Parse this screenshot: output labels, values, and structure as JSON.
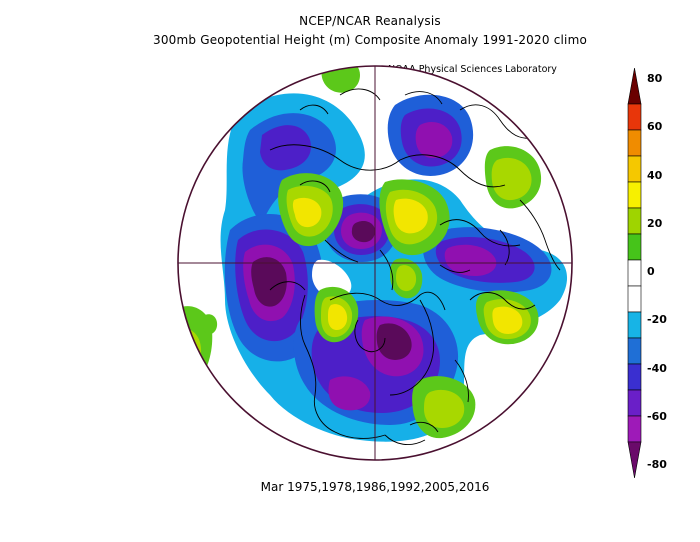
{
  "header": {
    "title_line1": "NCEP/NCAR Reanalysis",
    "title_line2": "300mb Geopotential Height (m) Composite Anomaly 1991-2020 climo",
    "credit": "NOAA Physical Sciences Laboratory"
  },
  "footer": {
    "caption": "Mar 1975,1978,1986,1992,2005,2016"
  },
  "colorbar": {
    "labels": [
      "80",
      "60",
      "40",
      "20",
      "0",
      "-20",
      "-40",
      "-60",
      "-80"
    ],
    "colors": [
      "#6a0000",
      "#e8360a",
      "#f08c00",
      "#f5c800",
      "#f7f000",
      "#9fd400",
      "#46c41a",
      "#ffffff",
      "#ffffff",
      "#17b4e6",
      "#1f6fd6",
      "#3a2fd0",
      "#6a1fc8",
      "#9e1ab8",
      "#6a0a6a"
    ]
  },
  "map": {
    "colors": {
      "strong_neg": "#5a0a5a",
      "neg60": "#9010b0",
      "neg40": "#4d1fc8",
      "neg20": "#1f5fd8",
      "neg10": "#16b0e8",
      "zero": "#ffffff",
      "pos10": "#5cc81a",
      "pos20": "#a8d800",
      "pos30": "#f2e600",
      "pos40": "#f5c400",
      "outline": "#4a1030",
      "coast": "#000000"
    }
  }
}
